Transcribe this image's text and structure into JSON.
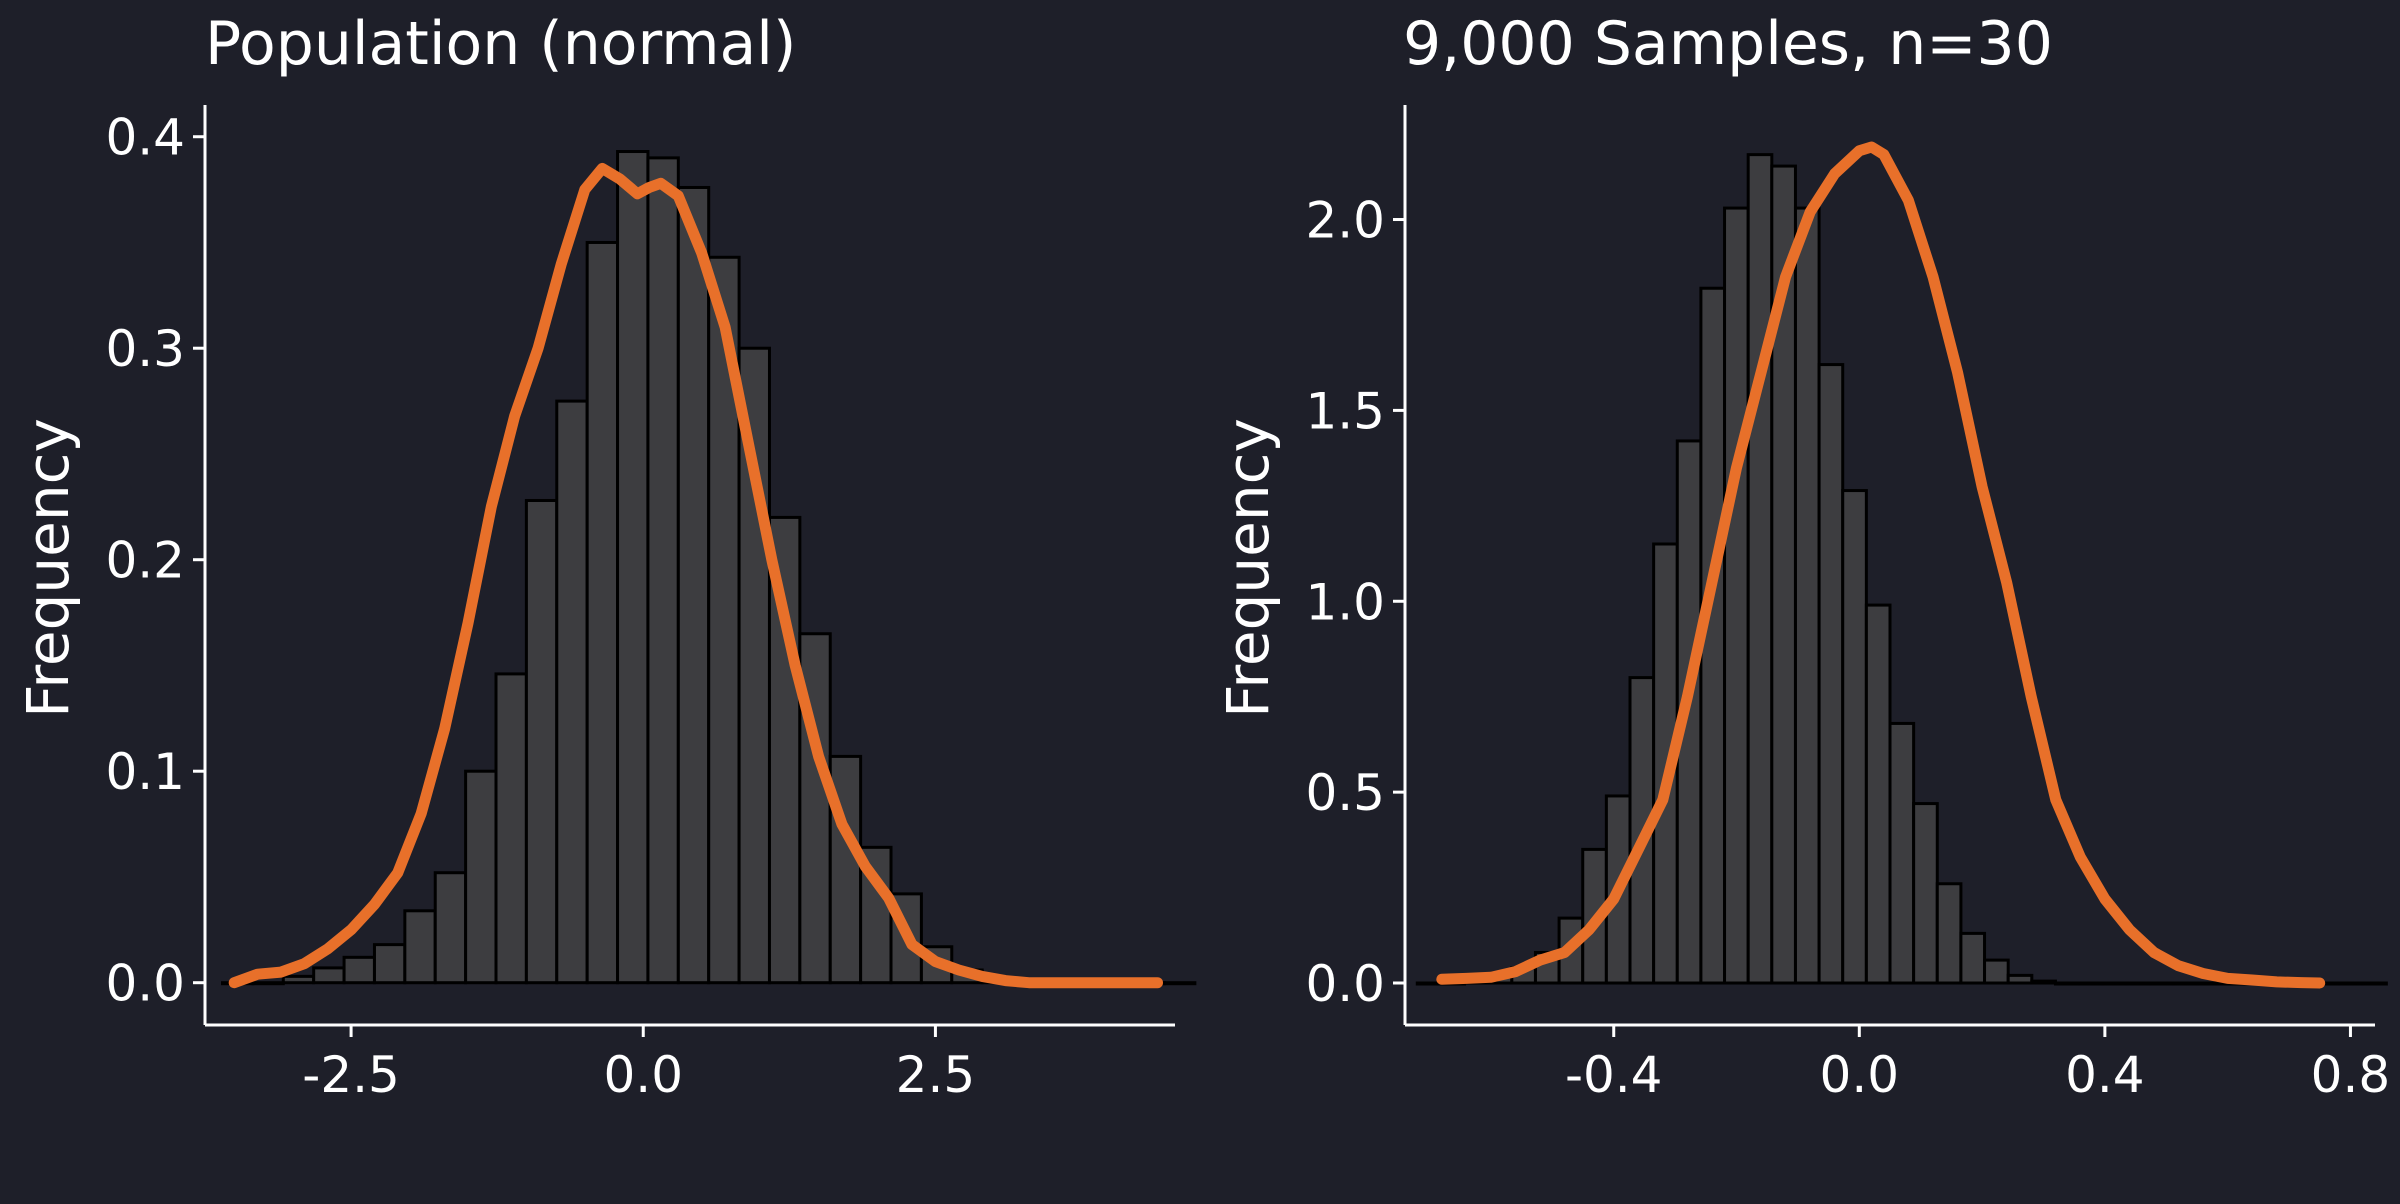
{
  "theme": {
    "background": "#1e1f29",
    "bar_fill": "#3d3d40",
    "bar_stroke": "#000000",
    "curve_color": "#e8702a",
    "axis_color": "#ffffff",
    "text_color": "#ffffff"
  },
  "chart_data": [
    {
      "type": "bar",
      "title": "Population (normal)",
      "xlabel": "",
      "ylabel": "Frequency",
      "grid": false,
      "xlim": [
        -3.75,
        4.55
      ],
      "ylim": [
        -0.02,
        0.415
      ],
      "x_ticks": [
        -2.5,
        0.0,
        2.5
      ],
      "x_tick_labels": [
        "-2.5",
        "0.0",
        "2.5"
      ],
      "y_ticks": [
        0.0,
        0.1,
        0.2,
        0.3,
        0.4
      ],
      "y_tick_labels": [
        "0.0",
        "0.1",
        "0.2",
        "0.3",
        "0.4"
      ],
      "histogram": {
        "bin_start": -3.6,
        "bin_width": 0.26,
        "values": [
          0.0,
          0.0,
          0.003,
          0.007,
          0.012,
          0.018,
          0.034,
          0.052,
          0.1,
          0.146,
          0.228,
          0.275,
          0.35,
          0.393,
          0.39,
          0.376,
          0.343,
          0.3,
          0.22,
          0.165,
          0.107,
          0.064,
          0.042,
          0.017,
          0.006,
          0.002,
          0.0,
          0.0,
          0.0,
          0.0,
          0.0,
          0.0
        ]
      },
      "density_curve": {
        "x": [
          -3.5,
          -3.3,
          -3.1,
          -2.9,
          -2.7,
          -2.5,
          -2.3,
          -2.1,
          -1.9,
          -1.7,
          -1.5,
          -1.3,
          -1.1,
          -0.9,
          -0.7,
          -0.5,
          -0.35,
          -0.2,
          -0.05,
          0.05,
          0.15,
          0.3,
          0.5,
          0.7,
          0.9,
          1.1,
          1.3,
          1.5,
          1.7,
          1.9,
          2.1,
          2.3,
          2.5,
          2.7,
          2.9,
          3.1,
          3.3,
          3.6,
          4.0,
          4.4
        ],
        "y": [
          0.0,
          0.004,
          0.005,
          0.009,
          0.016,
          0.025,
          0.037,
          0.052,
          0.08,
          0.12,
          0.17,
          0.225,
          0.268,
          0.3,
          0.34,
          0.375,
          0.385,
          0.38,
          0.373,
          0.376,
          0.378,
          0.372,
          0.345,
          0.31,
          0.255,
          0.2,
          0.15,
          0.107,
          0.075,
          0.055,
          0.04,
          0.018,
          0.01,
          0.006,
          0.003,
          0.001,
          0.0,
          0.0,
          0.0,
          0.0
        ]
      }
    },
    {
      "type": "bar",
      "title": "9,000 Samples, n=30",
      "xlabel": "",
      "ylabel": "Frequency",
      "grid": false,
      "xlim": [
        -0.74,
        0.84
      ],
      "ylim": [
        -0.11,
        2.3
      ],
      "x_ticks": [
        -0.4,
        0.0,
        0.4,
        0.8
      ],
      "x_tick_labels": [
        "-0.4",
        "0.0",
        "0.4",
        "0.8"
      ],
      "y_ticks": [
        0.0,
        0.5,
        1.0,
        1.5,
        2.0
      ],
      "y_tick_labels": [
        "0.0",
        "0.5",
        "1.0",
        "1.5",
        "2.0"
      ],
      "histogram": {
        "bin_start": -0.72,
        "bin_width": 0.0385,
        "values": [
          0.0,
          0.0,
          0.005,
          0.02,
          0.04,
          0.08,
          0.17,
          0.35,
          0.49,
          0.8,
          1.15,
          1.42,
          1.82,
          2.03,
          2.17,
          2.14,
          2.03,
          1.62,
          1.29,
          0.99,
          0.68,
          0.47,
          0.26,
          0.13,
          0.06,
          0.02,
          0.005,
          0.0,
          0.0,
          0.0,
          0.0,
          0.0,
          0.0,
          0.0,
          0.0,
          0.0,
          0.0,
          0.0,
          0.0,
          0.0,
          0.0
        ]
      },
      "density_curve": {
        "x": [
          -0.68,
          -0.64,
          -0.6,
          -0.56,
          -0.52,
          -0.48,
          -0.44,
          -0.4,
          -0.36,
          -0.32,
          -0.28,
          -0.24,
          -0.2,
          -0.16,
          -0.12,
          -0.08,
          -0.04,
          0.0,
          0.02,
          0.04,
          0.08,
          0.12,
          0.16,
          0.2,
          0.24,
          0.28,
          0.32,
          0.36,
          0.4,
          0.44,
          0.48,
          0.52,
          0.56,
          0.6,
          0.64,
          0.68,
          0.72,
          0.75
        ],
        "y": [
          0.01,
          0.012,
          0.015,
          0.03,
          0.06,
          0.08,
          0.14,
          0.22,
          0.35,
          0.48,
          0.75,
          1.05,
          1.35,
          1.6,
          1.85,
          2.02,
          2.12,
          2.18,
          2.19,
          2.17,
          2.05,
          1.85,
          1.6,
          1.3,
          1.05,
          0.75,
          0.48,
          0.33,
          0.22,
          0.14,
          0.08,
          0.045,
          0.025,
          0.012,
          0.008,
          0.003,
          0.001,
          0.0
        ]
      }
    }
  ]
}
